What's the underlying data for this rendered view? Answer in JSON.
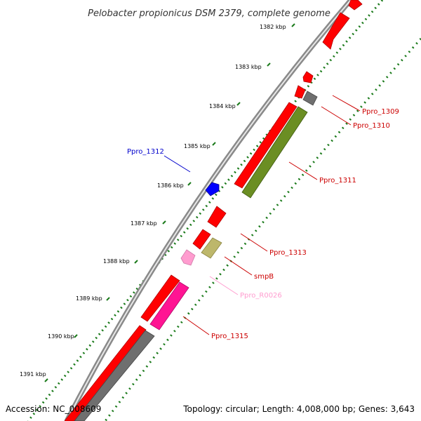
{
  "title": "Pelobacter propionicus DSM 2379, complete genome",
  "footer": {
    "accession": "Accession: NC_008609",
    "summary": "Topology: circular; Length: 4,008,000 bp; Genes: 3,643"
  },
  "colors": {
    "cds_forward": "#ff0000",
    "cds_reverse": "#ff0000",
    "pseudo_gray": "#6f6f6f",
    "olive": "#6b8e23",
    "khaki": "#bdb76b",
    "pink": "#ff8ccf",
    "deeppink": "#ff1493",
    "blue": "#0000ff",
    "backbone": "#8a8a8a",
    "ticks": "#1a7a1a",
    "label_red": "#cc0000",
    "label_blue": "#0000cc",
    "label_pink": "#ff9ccf"
  },
  "scale_labels": [
    "1382 kbp",
    "1383 kbp",
    "1384 kbp",
    "1385 kbp",
    "1386 kbp",
    "1387 kbp",
    "1388 kbp",
    "1389 kbp",
    "1390 kbp",
    "1391 kbp"
  ],
  "gene_labels": [
    {
      "id": "ppro-1309",
      "text": "Ppro_1309",
      "color": "label_red"
    },
    {
      "id": "ppro-1310",
      "text": "Ppro_1310",
      "color": "label_red"
    },
    {
      "id": "ppro-1311",
      "text": "Ppro_1311",
      "color": "label_red"
    },
    {
      "id": "ppro-1312",
      "text": "Ppro_1312",
      "color": "label_blue"
    },
    {
      "id": "ppro-1313",
      "text": "Ppro_1313",
      "color": "label_red"
    },
    {
      "id": "smpb",
      "text": "smpB",
      "color": "label_red"
    },
    {
      "id": "ppro-r0026",
      "text": "Ppro_R0026",
      "color": "label_pink"
    },
    {
      "id": "ppro-1315",
      "text": "Ppro_1315",
      "color": "label_red"
    }
  ]
}
